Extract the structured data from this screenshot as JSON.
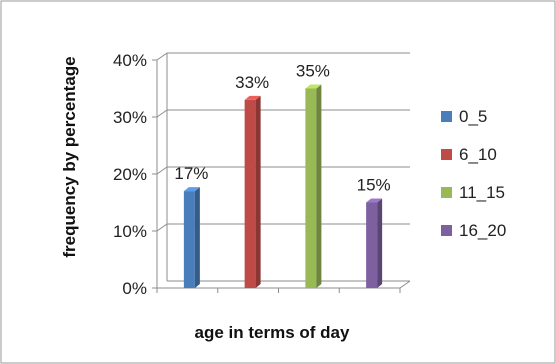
{
  "chart_data": {
    "type": "bar",
    "categories": [
      "0_5",
      "6_10",
      "11_15",
      "16_20"
    ],
    "values": [
      17,
      33,
      35,
      15
    ],
    "data_labels": [
      "17%",
      "33%",
      "35%",
      "15%"
    ],
    "title": "",
    "xlabel": "age in terms of day",
    "ylabel": "frequency by percentage",
    "ylim": [
      0,
      40
    ],
    "yticks": [
      0,
      10,
      20,
      30,
      40
    ],
    "ytick_labels": [
      "0%",
      "10%",
      "20%",
      "30%",
      "40%"
    ],
    "grid": true,
    "legend_position": "right",
    "legend": [
      "0_5",
      "6_10",
      "11_15",
      "16_20"
    ],
    "colors": [
      "#4a7ebb",
      "#be4b48",
      "#98b954",
      "#7d60a0"
    ],
    "style": "3d-columns"
  }
}
